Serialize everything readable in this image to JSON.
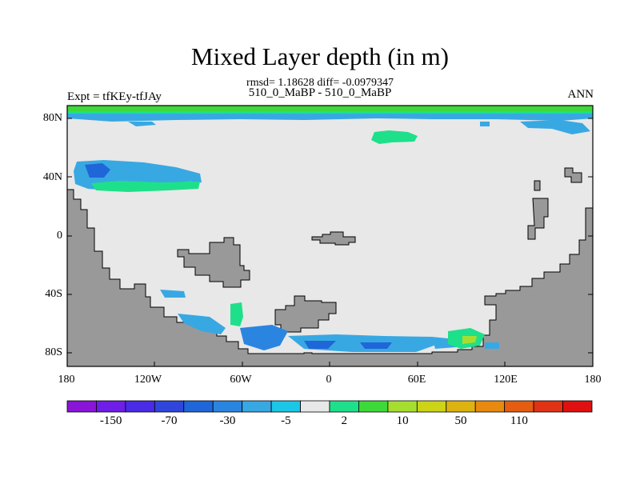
{
  "title": "Mixed Layer depth (in m)",
  "stats_line": "rmsd= 1.18628 diff= -0.0979347",
  "case_line": "510_0_MaBP - 510_0_MaBP",
  "expt_label": "Expt = tfKEy-tfJAy",
  "season_label": "ANN",
  "lat_ticks": [
    "80N",
    "40N",
    "0",
    "40S",
    "80S"
  ],
  "lon_ticks": [
    "180",
    "120W",
    "60W",
    "0",
    "60E",
    "120E",
    "180"
  ],
  "colorbar": {
    "colors": [
      "#8a14d8",
      "#6e1ee6",
      "#4a2be6",
      "#2f45dc",
      "#1f66d8",
      "#2a85e0",
      "#38a8e3",
      "#1cc6e6",
      "#e8e8e8",
      "#1ee08a",
      "#3fd83a",
      "#a6de30",
      "#ccd416",
      "#dcb310",
      "#e88a10",
      "#e45d12",
      "#e03214",
      "#e01010"
    ],
    "labels": [
      "-150",
      "-70",
      "-30",
      "-5",
      "2",
      "10",
      "50",
      "110"
    ]
  },
  "map_colors": {
    "ocean": "#e8e8e8",
    "land": "#999999",
    "outline": "#000000"
  }
}
